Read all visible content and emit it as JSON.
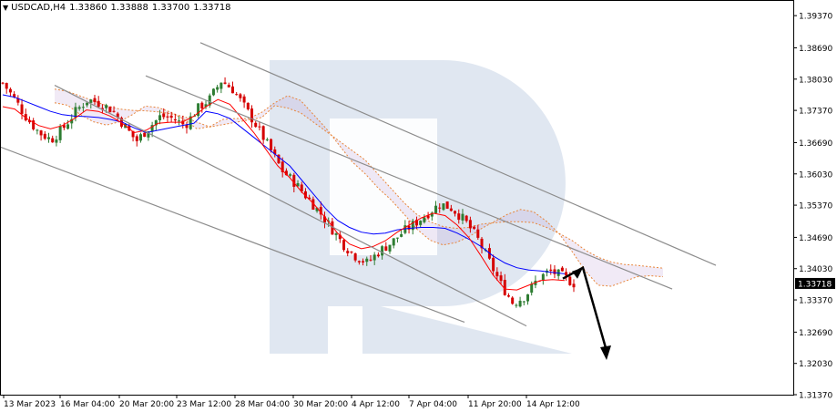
{
  "header": {
    "symbol": "USDCAD,H4",
    "open": "1.33860",
    "high": "1.33888",
    "low": "1.33700",
    "close": "1.33718"
  },
  "chart_data": {
    "type": "candlestick",
    "symbol": "USDCAD",
    "timeframe": "H4",
    "ylim": [
      1.3137,
      1.397
    ],
    "y_ticks": [
      "1.39370",
      "1.38690",
      "1.38030",
      "1.37370",
      "1.36690",
      "1.36030",
      "1.35370",
      "1.34690",
      "1.34030",
      "1.33370",
      "1.32690",
      "1.32030",
      "1.31370"
    ],
    "x_ticks": [
      "13 Mar 2023",
      "16 Mar 04:00",
      "20 Mar 20:00",
      "23 Mar 12:00",
      "28 Mar 04:00",
      "30 Mar 20:00",
      "4 Apr 12:00",
      "7 Apr 04:00",
      "11 Apr 20:00",
      "14 Apr 12:00"
    ],
    "current_price": "1.33718",
    "price_path": [
      1.3795,
      1.376,
      1.372,
      1.369,
      1.3675,
      1.37,
      1.3735,
      1.376,
      1.3752,
      1.3738,
      1.3705,
      1.3672,
      1.37,
      1.3725,
      1.372,
      1.3705,
      1.374,
      1.376,
      1.38,
      1.378,
      1.374,
      1.37,
      1.3655,
      1.361,
      1.3585,
      1.3555,
      1.3525,
      1.349,
      1.3455,
      1.343,
      1.3415,
      1.344,
      1.3458,
      1.3482,
      1.35,
      1.352,
      1.354,
      1.353,
      1.3505,
      1.347,
      1.342,
      1.337,
      1.333,
      1.3345,
      1.338,
      1.3398,
      1.3388,
      1.3372
    ],
    "series": [
      {
        "name": "",
        "color": "#0000ff",
        "values": [
          1.377,
          1.3765,
          1.3755,
          1.3745,
          1.3735,
          1.3728,
          1.3725,
          1.3724,
          1.3722,
          1.3718,
          1.3712,
          1.37,
          1.369,
          1.3695,
          1.37,
          1.3705,
          1.371,
          1.3735,
          1.373,
          1.372,
          1.37,
          1.368,
          1.366,
          1.364,
          1.362,
          1.359,
          1.356,
          1.353,
          1.3505,
          1.349,
          1.348,
          1.3476,
          1.3478,
          1.3485,
          1.3488,
          1.349,
          1.349,
          1.3488,
          1.3478,
          1.3465,
          1.345,
          1.343,
          1.3415,
          1.3405,
          1.34,
          1.3398,
          1.3395,
          1.3392
        ]
      },
      {
        "name": "",
        "color": "#ff0000",
        "values": [
          1.3745,
          1.374,
          1.372,
          1.3705,
          1.3698,
          1.3705,
          1.372,
          1.3738,
          1.3735,
          1.3725,
          1.371,
          1.369,
          1.3695,
          1.371,
          1.3712,
          1.3712,
          1.3725,
          1.3745,
          1.376,
          1.375,
          1.372,
          1.369,
          1.3655,
          1.362,
          1.3595,
          1.3565,
          1.354,
          1.351,
          1.3478,
          1.3455,
          1.3445,
          1.345,
          1.3462,
          1.348,
          1.3495,
          1.351,
          1.352,
          1.3515,
          1.3495,
          1.3468,
          1.343,
          1.339,
          1.336,
          1.3358,
          1.3368,
          1.3378,
          1.338,
          1.3378
        ]
      }
    ],
    "trend_lines": [
      {
        "x": [
          "13 Mar 2023",
          "14 Apr 12:00"
        ],
        "y": [
          1.366,
          1.329
        ]
      },
      {
        "y": [
          1.379,
          1.3282
        ]
      },
      {
        "x": [
          "23 Mar 12:00"
        ],
        "y": [
          1.381,
          1.336
        ]
      },
      {
        "y": [
          1.388,
          1.341
        ]
      }
    ],
    "forecast_arrow": {
      "from": 1.3405,
      "to": 1.321,
      "direction": "down"
    },
    "grid": false
  },
  "style": {
    "bull_color": "#2e7d32",
    "bear_color": "#d50000",
    "tenkan_color": "#ff0000",
    "kijun_color": "#0000ff",
    "cloud_color": "#e8863a",
    "cloud_fill": "#b48acb",
    "trend_line_color": "#8c8c8c",
    "price_label_bg": "#000000",
    "watermark_color": "#dbe3ee"
  }
}
